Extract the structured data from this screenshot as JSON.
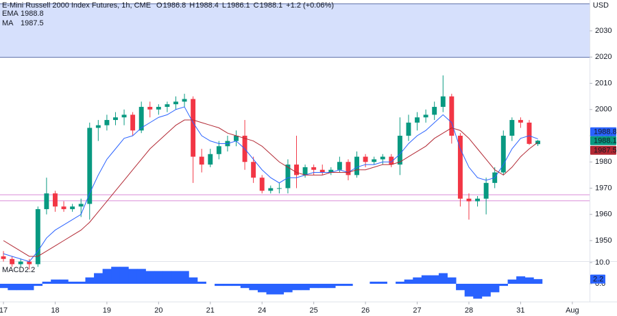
{
  "header": {
    "title": "E-Mini Russell 2000 Index Futures, 1h, CME",
    "ohlc_labels": [
      "O",
      "H",
      "L",
      "C"
    ],
    "change": "+1.2 (+0.06%)",
    "currency": "USD"
  },
  "chart_data": [
    {
      "type": "candlestick",
      "x": [
        0,
        1,
        2,
        3,
        4,
        5,
        6,
        7,
        8,
        9,
        10,
        11,
        12,
        13,
        14,
        15,
        16,
        17,
        18,
        19,
        20,
        21,
        22,
        23,
        24,
        25,
        26,
        27,
        28,
        29,
        30,
        31,
        32,
        33,
        34,
        35,
        36,
        37,
        38,
        39,
        40,
        41,
        42,
        43,
        44,
        45,
        46,
        47,
        48,
        49,
        50,
        51,
        52,
        53,
        54,
        55,
        56,
        57,
        58,
        59,
        60,
        61,
        62
      ],
      "open": [
        1944,
        1943,
        1941,
        1942,
        1941,
        1962,
        1968,
        1963,
        1962,
        1963,
        1964,
        1993,
        1994,
        1996,
        1997,
        1998,
        1992,
        2001,
        2000,
        2001,
        2002,
        2003,
        2004,
        1982,
        1979,
        1983,
        1986,
        1988,
        1990,
        1980,
        1974,
        1969,
        1970,
        1970,
        1979,
        1975,
        1978,
        1977,
        1976,
        1977,
        1980,
        1975,
        1982,
        1980,
        1981,
        1982,
        1979,
        1990,
        1995,
        1997,
        1998,
        2001,
        2005,
        1990,
        1966,
        1965,
        1966,
        1972,
        1976,
        1990,
        1996,
        1995,
        1986.8
      ],
      "high": [
        1946,
        1944,
        1943,
        1943,
        1963,
        1974,
        1969,
        1965,
        1964,
        1966,
        1995,
        1996,
        1998,
        1999,
        2000,
        1999,
        2003,
        2003,
        2002,
        2003,
        2005,
        2006,
        2005,
        1985,
        1985,
        1988,
        1990,
        1992,
        1996,
        1982,
        1975,
        1971,
        1972,
        1981,
        1990,
        1979,
        1979,
        1979,
        1978,
        1982,
        1981,
        1984,
        1983,
        1982,
        1983,
        1983,
        1997,
        1998,
        1999,
        2000,
        2003,
        2013,
        2006,
        1991,
        1968,
        1967,
        1974,
        1978,
        1992,
        1997,
        1997,
        1996,
        1988.4
      ],
      "low": [
        1942,
        1940,
        1940,
        1939,
        1940,
        1960,
        1961,
        1961,
        1961,
        1959,
        1958,
        1988,
        1992,
        1994,
        1994,
        1990,
        1991,
        1997,
        1998,
        1999,
        2000,
        2001,
        1972,
        1976,
        1978,
        1981,
        1984,
        1986,
        1977,
        1972,
        1968,
        1968,
        1968,
        1968,
        1970,
        1974,
        1975,
        1975,
        1975,
        1976,
        1973,
        1974,
        1978,
        1979,
        1979,
        1978,
        1975,
        1988,
        1992,
        1995,
        1996,
        1999,
        1987,
        1963,
        1958,
        1963,
        1960,
        1970,
        1975,
        1988,
        1993,
        1986.5,
        1986.1
      ],
      "close": [
        1943,
        1941,
        1942,
        1941,
        1962,
        1968,
        1963,
        1962,
        1963,
        1964,
        1993,
        1994,
        1996,
        1997,
        1998,
        1992,
        2001,
        2000,
        2001,
        2002,
        2003,
        2004,
        1982,
        1979,
        1983,
        1986,
        1988,
        1990,
        1980,
        1974,
        1969,
        1970,
        1970,
        1979,
        1975,
        1978,
        1977,
        1976,
        1977,
        1980,
        1975,
        1982,
        1980,
        1981,
        1982,
        1979,
        1990,
        1995,
        1997,
        1998,
        2001,
        2005,
        1990,
        1966,
        1965,
        1966,
        1972,
        1976,
        1990,
        1996,
        1995,
        1986.9,
        1988.1
      ],
      "up_color": "#089981",
      "down_color": "#f23645",
      "overlays": [
        {
          "name": "EMA",
          "color": "#2962ff",
          "values": [
            1945,
            1944,
            1943,
            1942,
            1946,
            1951,
            1954,
            1956,
            1958,
            1960,
            1968,
            1975,
            1981,
            1985,
            1989,
            1990,
            1993,
            1995,
            1997,
            1998,
            2000,
            2001,
            1995,
            1990,
            1988,
            1987,
            1987,
            1988,
            1985,
            1981,
            1977,
            1974,
            1972,
            1974,
            1974,
            1975,
            1976,
            1976,
            1976,
            1977,
            1976,
            1978,
            1979,
            1979,
            1980,
            1980,
            1983,
            1987,
            1990,
            1992,
            1995,
            1998,
            1995,
            1985,
            1978,
            1974,
            1973,
            1974,
            1979,
            1985,
            1989,
            1990,
            1988.8
          ]
        },
        {
          "name": "MA",
          "color": "#b22833",
          "values": [
            1950,
            1948,
            1946,
            1944,
            1944,
            1946,
            1948,
            1950,
            1952,
            1954,
            1957,
            1961,
            1965,
            1969,
            1973,
            1977,
            1981,
            1985,
            1988,
            1991,
            1994,
            1996,
            1996,
            1995,
            1994,
            1993,
            1991,
            1990,
            1989,
            1988,
            1986,
            1983,
            1980,
            1978,
            1976,
            1975,
            1975,
            1975,
            1976,
            1976,
            1976,
            1977,
            1977,
            1978,
            1979,
            1979,
            1980,
            1982,
            1984,
            1986,
            1989,
            1991,
            1993,
            1992,
            1989,
            1985,
            1981,
            1977,
            1975,
            1978,
            1982,
            1985,
            1987.5
          ]
        }
      ],
      "band": {
        "range": [
          2019.9,
          2040.3
        ],
        "color": "#d6e0fc",
        "edge": "#5b6fa8"
      },
      "hlines": {
        "values": [
          1967.5,
          1965.2
        ],
        "color": "#d98bd8"
      },
      "xlim": [
        -0.4,
        68.0
      ],
      "ylim": [
        1942.16,
        2041.76
      ],
      "xticks": [
        {
          "value": 0,
          "label": "17"
        },
        {
          "value": 6,
          "label": "18"
        },
        {
          "value": 12,
          "label": "19"
        },
        {
          "value": 18,
          "label": "20"
        },
        {
          "value": 24,
          "label": "21"
        },
        {
          "value": 30,
          "label": "24"
        },
        {
          "value": 36,
          "label": "25"
        },
        {
          "value": 42,
          "label": "26"
        },
        {
          "value": 48,
          "label": "27"
        },
        {
          "value": 54,
          "label": "28"
        },
        {
          "value": 60,
          "label": "31"
        },
        {
          "value": 66,
          "label": "Aug"
        }
      ],
      "yticks": [
        1950,
        1960,
        1970,
        1980,
        1990,
        2000,
        2010,
        2020,
        2030
      ]
    },
    {
      "type": "area",
      "name": "MACD",
      "color": "#2962ff",
      "values": [
        -2,
        -3,
        -3,
        -3,
        -1,
        1,
        2,
        2,
        1,
        1,
        3,
        5,
        7,
        8,
        8,
        7,
        7,
        6,
        6,
        6,
        6,
        6,
        3,
        1,
        0,
        -1,
        -1,
        -1,
        -2,
        -3,
        -4,
        -5,
        -5,
        -4,
        -3,
        -3,
        -2,
        -2,
        -2,
        -1,
        -1,
        0,
        0,
        1,
        1,
        0,
        1,
        2,
        3,
        4,
        4,
        5,
        3,
        -3,
        -6,
        -7,
        -6,
        -4,
        -1,
        2,
        3.5,
        3,
        2.2
      ],
      "ylim": [
        -8.39,
        10.65
      ],
      "yticks": [
        {
          "value": 0,
          "label": "0.0"
        },
        {
          "value": 10,
          "label": "10.0"
        }
      ]
    }
  ]
}
